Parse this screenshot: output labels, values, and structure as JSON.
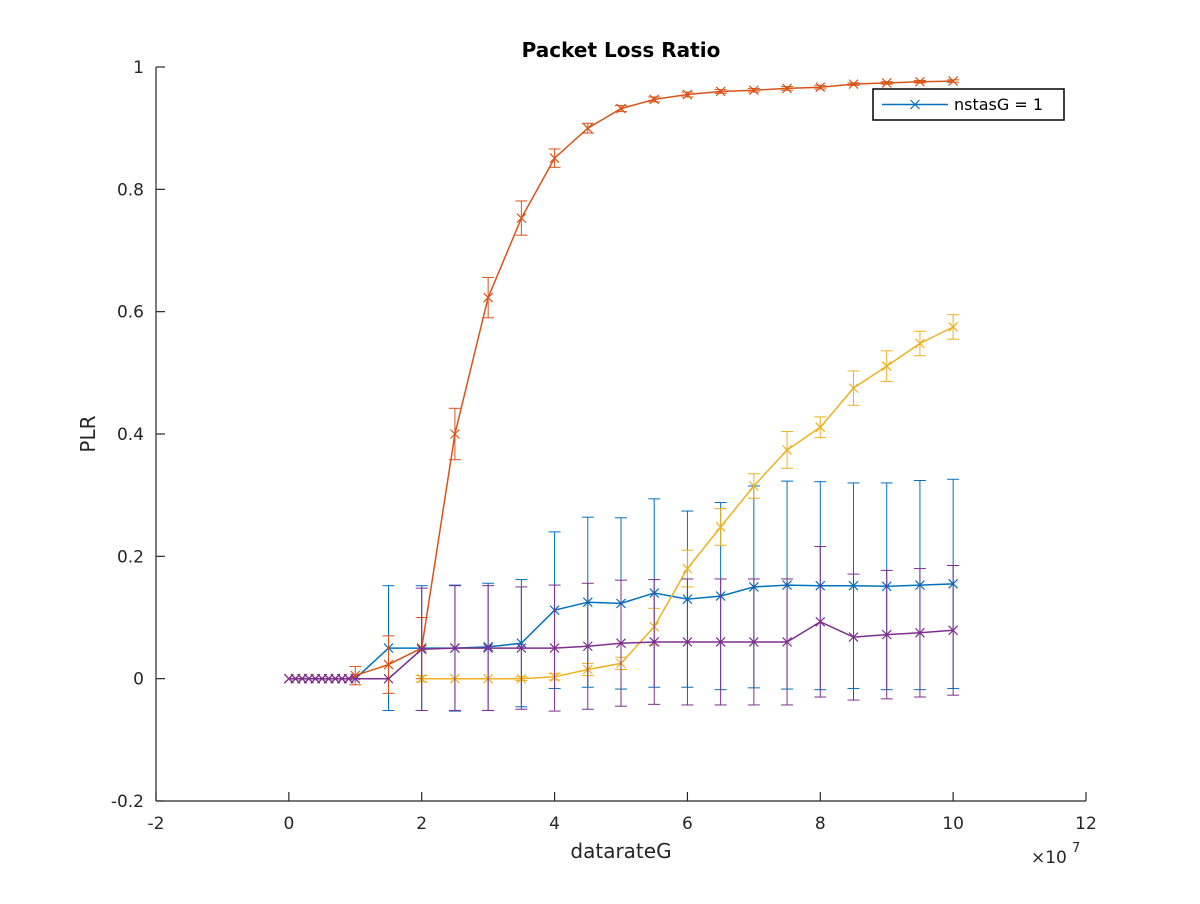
{
  "chart_data": {
    "type": "line",
    "title": "Packet Loss Ratio",
    "xlabel": "datarateG",
    "ylabel": "PLR",
    "x_exponent_label": "×10",
    "x_exponent_power": "7",
    "xlim": [
      -2,
      12
    ],
    "ylim": [
      -0.2,
      1
    ],
    "x_ticks": [
      -2,
      0,
      2,
      4,
      6,
      8,
      10,
      12
    ],
    "x_tick_labels": [
      "-2",
      "0",
      "2",
      "4",
      "6",
      "8",
      "10",
      "12"
    ],
    "y_ticks": [
      -0.2,
      0,
      0.2,
      0.4,
      0.6,
      0.8,
      1
    ],
    "y_tick_labels": [
      "-0.2",
      "0",
      "0.2",
      "0.4",
      "0.6",
      "0.8",
      "1"
    ],
    "grid": false,
    "legend": {
      "placement": "top-right",
      "entries": [
        "nstasG = 1"
      ]
    },
    "x_units_note": "x values are in units of 10^7 as printed on the axis",
    "series": [
      {
        "name": "nstasG = 1",
        "color": "#0072BD",
        "x": [
          0,
          0.1,
          0.2,
          0.3,
          0.4,
          0.5,
          0.6,
          0.7,
          0.8,
          0.9,
          1.0,
          1.5,
          2.0,
          2.5,
          3.0,
          3.5,
          4.0,
          4.5,
          5.0,
          5.5,
          6.0,
          6.5,
          7.0,
          7.5,
          8.0,
          8.5,
          9.0,
          9.5,
          10.0
        ],
        "y": [
          0,
          0,
          0,
          0,
          0,
          0,
          0,
          0,
          0,
          0,
          0,
          0.05,
          0.05,
          0.05,
          0.052,
          0.058,
          0.112,
          0.125,
          0.123,
          0.14,
          0.13,
          0.135,
          0.15,
          0.153,
          0.152,
          0.152,
          0.151,
          0.153,
          0.155
        ],
        "err": [
          0,
          0,
          0,
          0,
          0,
          0,
          0,
          0,
          0,
          0,
          0,
          0.102,
          0.102,
          0.103,
          0.104,
          0.104,
          0.128,
          0.139,
          0.14,
          0.154,
          0.144,
          0.153,
          0.165,
          0.17,
          0.17,
          0.168,
          0.169,
          0.171,
          0.171
        ]
      },
      {
        "color": "#D95319",
        "x": [
          0,
          0.1,
          0.2,
          0.3,
          0.4,
          0.5,
          0.6,
          0.7,
          0.8,
          0.9,
          1.0,
          1.5,
          2.0,
          2.5,
          3.0,
          3.5,
          4.0,
          4.5,
          5.0,
          5.5,
          6.0,
          6.5,
          7.0,
          7.5,
          8.0,
          8.5,
          9.0,
          9.5,
          10.0
        ],
        "y": [
          0,
          0,
          0,
          0,
          0,
          0,
          0,
          0,
          0,
          0,
          0.005,
          0.023,
          0.05,
          0.4,
          0.623,
          0.753,
          0.851,
          0.9,
          0.932,
          0.947,
          0.955,
          0.96,
          0.962,
          0.965,
          0.967,
          0.972,
          0.974,
          0.976,
          0.977
        ],
        "err": [
          0,
          0,
          0,
          0,
          0,
          0,
          0,
          0,
          0,
          0,
          0.015,
          0.047,
          0.05,
          0.042,
          0.033,
          0.028,
          0.015,
          0.008,
          0.005,
          0.004,
          0.004,
          0.003,
          0.003,
          0.003,
          0.003,
          0.002,
          0.002,
          0.002,
          0.002
        ]
      },
      {
        "color": "#EDB120",
        "x": [
          2.0,
          2.5,
          3.0,
          3.5,
          4.0,
          4.5,
          5.0,
          5.5,
          6.0,
          6.5,
          7.0,
          7.5,
          8.0,
          8.5,
          9.0,
          9.5,
          10.0
        ],
        "y": [
          0,
          0,
          0,
          0,
          0.003,
          0.015,
          0.025,
          0.085,
          0.18,
          0.248,
          0.315,
          0.374,
          0.411,
          0.475,
          0.511,
          0.548,
          0.575
        ],
        "err": [
          0.005,
          0,
          0,
          0.003,
          0.005,
          0.01,
          0.01,
          0.03,
          0.03,
          0.03,
          0.02,
          0.03,
          0.017,
          0.028,
          0.025,
          0.02,
          0.02
        ]
      },
      {
        "color": "#7E2F8E",
        "x": [
          0,
          0.1,
          0.2,
          0.3,
          0.4,
          0.5,
          0.6,
          0.7,
          0.8,
          0.9,
          1.0,
          1.5,
          2.0,
          2.5,
          3.0,
          3.5,
          4.0,
          4.5,
          5.0,
          5.5,
          6.0,
          6.5,
          7.0,
          7.5,
          8.0,
          8.5,
          9.0,
          9.5,
          10.0
        ],
        "y": [
          0,
          0,
          0,
          0,
          0,
          0,
          0,
          0,
          0,
          0,
          0,
          0,
          0.048,
          0.05,
          0.05,
          0.05,
          0.05,
          0.053,
          0.058,
          0.06,
          0.06,
          0.06,
          0.06,
          0.06,
          0.093,
          0.068,
          0.072,
          0.075,
          0.079
        ],
        "err": [
          0,
          0,
          0,
          0,
          0,
          0,
          0,
          0,
          0,
          0,
          0,
          0,
          0.1,
          0.102,
          0.102,
          0.1,
          0.103,
          0.103,
          0.103,
          0.102,
          0.103,
          0.103,
          0.103,
          0.103,
          0.123,
          0.103,
          0.105,
          0.105,
          0.106
        ]
      }
    ]
  }
}
